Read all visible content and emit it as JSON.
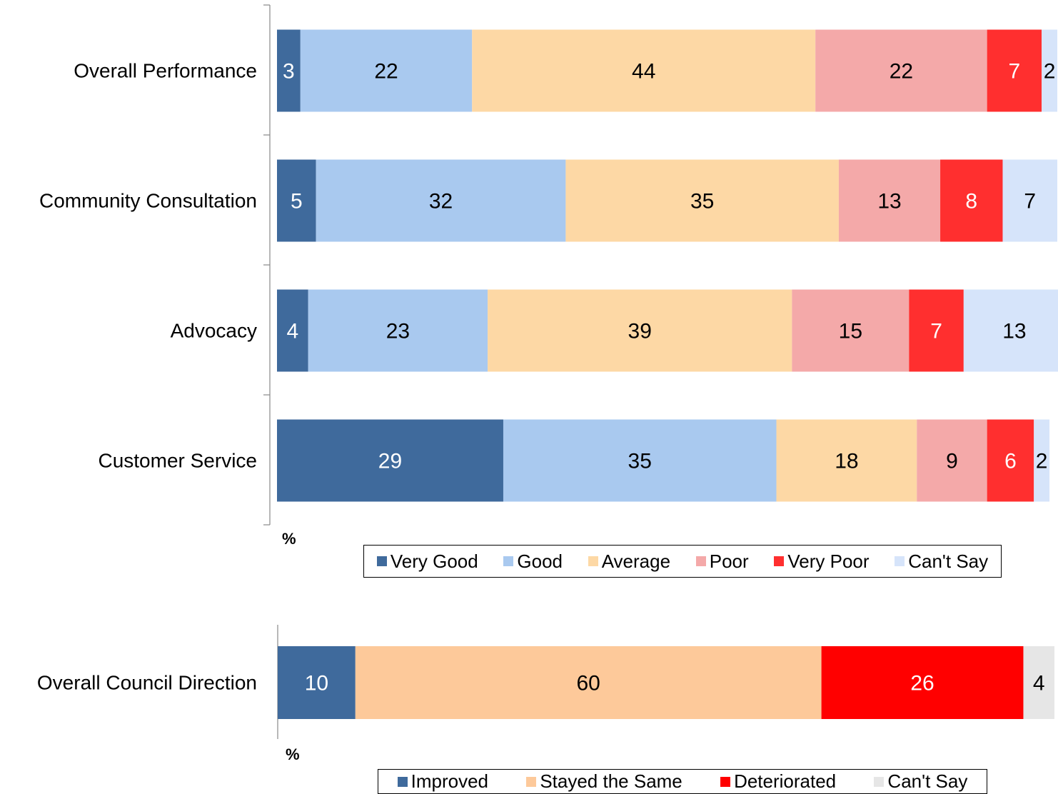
{
  "chart_data": [
    {
      "type": "stacked-bar-horizontal",
      "categories": [
        "Overall Performance",
        "Community Consultation",
        "Advocacy",
        "Customer Service"
      ],
      "series": [
        {
          "name": "Very Good",
          "color": "#3f6a9c",
          "values": [
            3,
            5,
            4,
            29
          ]
        },
        {
          "name": "Good",
          "color": "#a9c9ef",
          "values": [
            22,
            32,
            23,
            35
          ]
        },
        {
          "name": "Average",
          "color": "#fdd8a5",
          "values": [
            44,
            35,
            39,
            18
          ]
        },
        {
          "name": "Poor",
          "color": "#f4a9a9",
          "values": [
            22,
            13,
            15,
            9
          ]
        },
        {
          "name": "Very Poor",
          "color": "#ff2f2f",
          "values": [
            7,
            8,
            7,
            6
          ]
        },
        {
          "name": "Can't Say",
          "color": "#d6e4fa",
          "values": [
            2,
            7,
            13,
            2
          ]
        }
      ],
      "xlim": [
        0,
        100
      ],
      "xlabel": "%",
      "legend": "bottom"
    },
    {
      "type": "stacked-bar-horizontal",
      "categories": [
        "Overall Council Direction"
      ],
      "series": [
        {
          "name": "Improved",
          "color": "#3f6a9c",
          "values": [
            10
          ]
        },
        {
          "name": "Stayed the Same",
          "color": "#fdc99a",
          "values": [
            60
          ]
        },
        {
          "name": "Deteriorated",
          "color": "#ff0000",
          "values": [
            26
          ]
        },
        {
          "name": "Can't Say",
          "color": "#e6e6e6",
          "values": [
            4
          ]
        }
      ],
      "xlim": [
        0,
        100
      ],
      "xlabel": "%",
      "legend": "bottom"
    }
  ]
}
